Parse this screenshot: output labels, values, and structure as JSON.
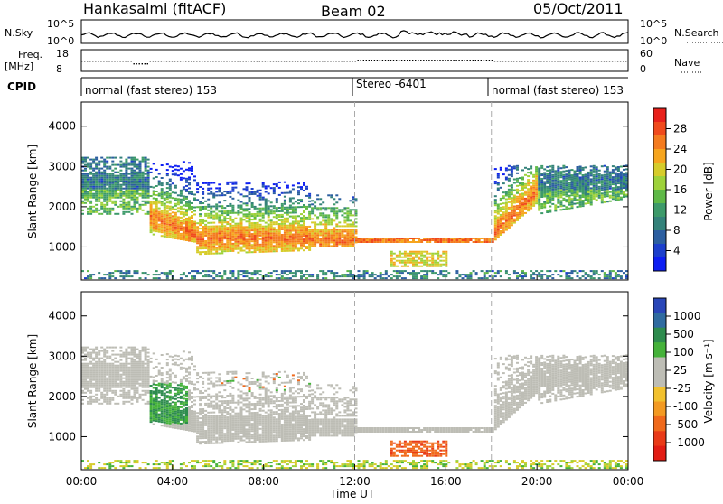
{
  "header": {
    "station": "Hankasalmi (fitACF)",
    "beam": "Beam 02",
    "date": "05/Oct/2011"
  },
  "noise_panel": {
    "left_label": "N.Sky",
    "left_ticks": [
      "10^5",
      "10^0"
    ],
    "right_label": "N.Search",
    "right_ticks": [
      "10^5",
      "10^0"
    ]
  },
  "freq_panel": {
    "left_label_1": "Freq.",
    "left_label_2": "[MHz]",
    "left_ticks": [
      "18",
      "8"
    ],
    "right_label": "Nave",
    "right_ticks": [
      "60",
      "0"
    ]
  },
  "cpid_panel": {
    "label": "CPID",
    "modes": [
      {
        "start_hour": 0,
        "end_hour": 12,
        "label": "normal (fast stereo) 153"
      },
      {
        "start_hour": 12,
        "end_hour": 18,
        "label": "Stereo -6401"
      },
      {
        "start_hour": 18,
        "end_hour": 24,
        "label": "normal (fast stereo) 153"
      }
    ]
  },
  "colorbars": {
    "power": {
      "label": "Power [dB]",
      "ticks": [
        "28",
        "24",
        "20",
        "16",
        "12",
        "8",
        "4"
      ],
      "colors": [
        "#e8211b",
        "#f04a1c",
        "#f47b1f",
        "#f6a51e",
        "#d6cc2a",
        "#9ed23a",
        "#5fb947",
        "#3d9a6a",
        "#34827a",
        "#2c5fa0",
        "#1c3fcc",
        "#0d1ef2"
      ]
    },
    "velocity": {
      "label": "Velocity [m s⁻¹]",
      "ticks": [
        "1000",
        "500",
        "100",
        "25",
        "-25",
        "-100",
        "-500",
        "-1000"
      ],
      "colors": [
        "#2946b8",
        "#2f6ba0",
        "#2e8c4e",
        "#45b23a",
        "#bdbdb5",
        "#bdbdb5",
        "#f2c12e",
        "#f39a22",
        "#f06a1c",
        "#e93a17",
        "#e21d14"
      ]
    }
  },
  "chart_data": {
    "type": "heatmap",
    "panels": [
      "Power",
      "Velocity"
    ],
    "ylabel": "Slant Range [km]",
    "xlabel": "Time UT",
    "xlim_hours": [
      0,
      24
    ],
    "ylim_km": [
      180,
      4600
    ],
    "y_ticks": [
      "4000",
      "3000",
      "2000",
      "1000"
    ],
    "x_ticks": [
      "00:00",
      "04:00",
      "08:00",
      "12:00",
      "16:00",
      "20:00",
      "00:00"
    ],
    "mode_boundaries_hours": [
      12,
      18
    ],
    "power_scale_db": [
      0,
      32
    ],
    "velocity_scale": [
      -1000,
      1000
    ]
  }
}
